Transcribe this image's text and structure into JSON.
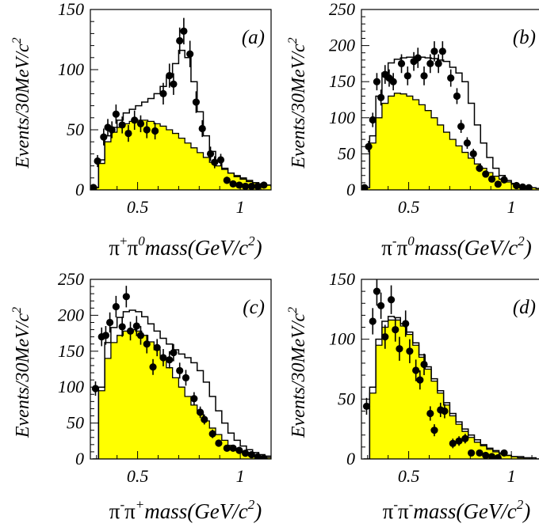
{
  "chart_data": [
    {
      "type": "histogram",
      "panel_label": "(a)",
      "xlabel": {
        "base": "π",
        "sup1": "+",
        "mid": "π",
        "sup2": "0",
        "text": "mass(GeV/c",
        "sup3": "2",
        "close": ")"
      },
      "ylabel": {
        "text": "Events/30MeV/c",
        "sup": "2"
      },
      "xlim": [
        0.27,
        1.15
      ],
      "ylim": [
        0,
        150
      ],
      "xticks": [
        {
          "v": 0.5,
          "label": "0.5"
        },
        {
          "v": 1.0,
          "label": "1"
        }
      ],
      "yticks": [
        {
          "v": 0,
          "label": "0"
        },
        {
          "v": 50,
          "label": "50"
        },
        {
          "v": 100,
          "label": "100"
        },
        {
          "v": 150,
          "label": "150"
        }
      ],
      "bins": {
        "start": 0.28,
        "width": 0.03,
        "filled": [
          2,
          22,
          40,
          48,
          52,
          55,
          57,
          58,
          58,
          57,
          55,
          53,
          50,
          47,
          43,
          39,
          35,
          31,
          27,
          23,
          20,
          17,
          14,
          12,
          10,
          8,
          6,
          5,
          4,
          3
        ],
        "total": [
          2,
          25,
          45,
          52,
          58,
          64,
          67,
          70,
          73,
          76,
          80,
          86,
          94,
          105,
          116,
          110,
          90,
          65,
          45,
          32,
          24,
          18,
          14,
          11,
          9,
          7,
          6,
          5,
          4,
          3
        ]
      },
      "points": [
        {
          "x": 0.285,
          "y": 2,
          "err": 1
        },
        {
          "x": 0.305,
          "y": 24,
          "err": 5
        },
        {
          "x": 0.335,
          "y": 44,
          "err": 7
        },
        {
          "x": 0.355,
          "y": 52,
          "err": 7
        },
        {
          "x": 0.375,
          "y": 50,
          "err": 7
        },
        {
          "x": 0.395,
          "y": 63,
          "err": 8
        },
        {
          "x": 0.425,
          "y": 54,
          "err": 7
        },
        {
          "x": 0.455,
          "y": 47,
          "err": 7
        },
        {
          "x": 0.485,
          "y": 58,
          "err": 8
        },
        {
          "x": 0.515,
          "y": 55,
          "err": 7
        },
        {
          "x": 0.545,
          "y": 50,
          "err": 7
        },
        {
          "x": 0.585,
          "y": 49,
          "err": 7
        },
        {
          "x": 0.625,
          "y": 80,
          "err": 9
        },
        {
          "x": 0.655,
          "y": 95,
          "err": 10
        },
        {
          "x": 0.675,
          "y": 88,
          "err": 9
        },
        {
          "x": 0.705,
          "y": 124,
          "err": 11
        },
        {
          "x": 0.725,
          "y": 132,
          "err": 11
        },
        {
          "x": 0.755,
          "y": 113,
          "err": 11
        },
        {
          "x": 0.785,
          "y": 73,
          "err": 9
        },
        {
          "x": 0.815,
          "y": 51,
          "err": 7
        },
        {
          "x": 0.855,
          "y": 30,
          "err": 6
        },
        {
          "x": 0.875,
          "y": 23,
          "err": 5
        },
        {
          "x": 0.905,
          "y": 25,
          "err": 5
        },
        {
          "x": 0.935,
          "y": 8,
          "err": 3
        },
        {
          "x": 0.965,
          "y": 5,
          "err": 2
        },
        {
          "x": 0.995,
          "y": 4,
          "err": 2
        },
        {
          "x": 1.025,
          "y": 3,
          "err": 2
        },
        {
          "x": 1.055,
          "y": 3,
          "err": 2
        },
        {
          "x": 1.085,
          "y": 3,
          "err": 2
        },
        {
          "x": 1.115,
          "y": 4,
          "err": 2
        }
      ]
    },
    {
      "type": "histogram",
      "panel_label": "(b)",
      "xlabel": {
        "base": "π",
        "sup1": "-",
        "mid": "π",
        "sup2": "0",
        "text": "mass(GeV/c",
        "sup3": "2",
        "close": ")"
      },
      "ylabel": {
        "text": "Events/30MeV/c",
        "sup": "2"
      },
      "xlim": [
        0.27,
        1.15
      ],
      "ylim": [
        0,
        250
      ],
      "xticks": [
        {
          "v": 0.5,
          "label": "0.5"
        },
        {
          "v": 1.0,
          "label": "1"
        }
      ],
      "yticks": [
        {
          "v": 0,
          "label": "0"
        },
        {
          "v": 50,
          "label": "50"
        },
        {
          "v": 100,
          "label": "100"
        },
        {
          "v": 150,
          "label": "150"
        },
        {
          "v": 200,
          "label": "200"
        },
        {
          "v": 250,
          "label": "250"
        }
      ],
      "bins": {
        "start": 0.28,
        "width": 0.03,
        "filled": [
          3,
          65,
          100,
          120,
          130,
          134,
          133,
          130,
          125,
          118,
          110,
          100,
          90,
          80,
          70,
          61,
          52,
          44,
          36,
          30,
          24,
          19,
          15,
          11,
          8,
          6,
          4,
          3,
          2,
          2
        ],
        "total": [
          3,
          75,
          130,
          162,
          176,
          181,
          183,
          184,
          184,
          184,
          183,
          182,
          180,
          178,
          170,
          162,
          150,
          120,
          90,
          65,
          45,
          30,
          20,
          13,
          9,
          6,
          4,
          3,
          2,
          2
        ]
      },
      "points": [
        {
          "x": 0.285,
          "y": 3,
          "err": 2
        },
        {
          "x": 0.305,
          "y": 60,
          "err": 8
        },
        {
          "x": 0.325,
          "y": 97,
          "err": 10
        },
        {
          "x": 0.345,
          "y": 150,
          "err": 12
        },
        {
          "x": 0.365,
          "y": 128,
          "err": 11
        },
        {
          "x": 0.385,
          "y": 160,
          "err": 13
        },
        {
          "x": 0.405,
          "y": 155,
          "err": 12
        },
        {
          "x": 0.425,
          "y": 150,
          "err": 12
        },
        {
          "x": 0.465,
          "y": 175,
          "err": 13
        },
        {
          "x": 0.495,
          "y": 158,
          "err": 13
        },
        {
          "x": 0.525,
          "y": 178,
          "err": 13
        },
        {
          "x": 0.545,
          "y": 183,
          "err": 14
        },
        {
          "x": 0.575,
          "y": 158,
          "err": 13
        },
        {
          "x": 0.605,
          "y": 175,
          "err": 13
        },
        {
          "x": 0.625,
          "y": 192,
          "err": 14
        },
        {
          "x": 0.645,
          "y": 175,
          "err": 13
        },
        {
          "x": 0.665,
          "y": 192,
          "err": 14
        },
        {
          "x": 0.705,
          "y": 155,
          "err": 12
        },
        {
          "x": 0.735,
          "y": 130,
          "err": 11
        },
        {
          "x": 0.755,
          "y": 88,
          "err": 9
        },
        {
          "x": 0.785,
          "y": 65,
          "err": 8
        },
        {
          "x": 0.815,
          "y": 50,
          "err": 7
        },
        {
          "x": 0.845,
          "y": 30,
          "err": 5
        },
        {
          "x": 0.875,
          "y": 22,
          "err": 5
        },
        {
          "x": 0.905,
          "y": 15,
          "err": 4
        },
        {
          "x": 0.935,
          "y": 8,
          "err": 3
        },
        {
          "x": 0.965,
          "y": 14,
          "err": 4
        },
        {
          "x": 1.025,
          "y": 6,
          "err": 2
        },
        {
          "x": 1.055,
          "y": 4,
          "err": 2
        },
        {
          "x": 1.085,
          "y": 3,
          "err": 2
        }
      ]
    },
    {
      "type": "histogram",
      "panel_label": "(c)",
      "xlabel": {
        "base": "π",
        "sup1": "-",
        "mid": "π",
        "sup2": "+",
        "text": "mass(GeV/c",
        "sup3": "2",
        "close": ")"
      },
      "ylabel": {
        "text": "Events/30MeV/c",
        "sup": "2"
      },
      "xlim": [
        0.27,
        1.15
      ],
      "ylim": [
        0,
        250
      ],
      "xticks": [
        {
          "v": 0.5,
          "label": "0.5"
        },
        {
          "v": 1.0,
          "label": "1"
        }
      ],
      "yticks": [
        {
          "v": 0,
          "label": "0"
        },
        {
          "v": 50,
          "label": "50"
        },
        {
          "v": 100,
          "label": "100"
        },
        {
          "v": 150,
          "label": "150"
        },
        {
          "v": 200,
          "label": "200"
        },
        {
          "v": 250,
          "label": "250"
        }
      ],
      "bins": {
        "start": 0.28,
        "width": 0.03,
        "filled": [
          0,
          95,
          140,
          162,
          172,
          178,
          180,
          178,
          172,
          163,
          152,
          140,
          127,
          113,
          100,
          87,
          75,
          64,
          53,
          43,
          34,
          26,
          19,
          14,
          10,
          7,
          5,
          3,
          2,
          1
        ],
        "total": [
          0,
          100,
          162,
          183,
          197,
          205,
          207,
          205,
          198,
          188,
          178,
          168,
          160,
          152,
          146,
          141,
          134,
          123,
          107,
          87,
          67,
          50,
          36,
          26,
          18,
          13,
          9,
          6,
          4,
          2
        ]
      },
      "points": [
        {
          "x": 0.295,
          "y": 98,
          "err": 10
        },
        {
          "x": 0.325,
          "y": 170,
          "err": 13
        },
        {
          "x": 0.345,
          "y": 172,
          "err": 13
        },
        {
          "x": 0.365,
          "y": 190,
          "err": 14
        },
        {
          "x": 0.395,
          "y": 212,
          "err": 15
        },
        {
          "x": 0.425,
          "y": 184,
          "err": 14
        },
        {
          "x": 0.445,
          "y": 226,
          "err": 15
        },
        {
          "x": 0.465,
          "y": 178,
          "err": 13
        },
        {
          "x": 0.495,
          "y": 185,
          "err": 14
        },
        {
          "x": 0.515,
          "y": 172,
          "err": 13
        },
        {
          "x": 0.545,
          "y": 160,
          "err": 13
        },
        {
          "x": 0.575,
          "y": 128,
          "err": 11
        },
        {
          "x": 0.595,
          "y": 155,
          "err": 12
        },
        {
          "x": 0.625,
          "y": 141,
          "err": 12
        },
        {
          "x": 0.655,
          "y": 138,
          "err": 12
        },
        {
          "x": 0.675,
          "y": 148,
          "err": 12
        },
        {
          "x": 0.705,
          "y": 123,
          "err": 11
        },
        {
          "x": 0.735,
          "y": 113,
          "err": 11
        },
        {
          "x": 0.775,
          "y": 84,
          "err": 9
        },
        {
          "x": 0.805,
          "y": 65,
          "err": 8
        },
        {
          "x": 0.825,
          "y": 55,
          "err": 7
        },
        {
          "x": 0.865,
          "y": 35,
          "err": 6
        },
        {
          "x": 0.895,
          "y": 22,
          "err": 5
        },
        {
          "x": 0.935,
          "y": 15,
          "err": 4
        },
        {
          "x": 0.965,
          "y": 15,
          "err": 4
        },
        {
          "x": 0.995,
          "y": 12,
          "err": 3
        },
        {
          "x": 1.025,
          "y": 8,
          "err": 3
        },
        {
          "x": 1.055,
          "y": 6,
          "err": 2
        },
        {
          "x": 1.085,
          "y": 3,
          "err": 2
        },
        {
          "x": 1.115,
          "y": 1,
          "err": 1
        }
      ]
    },
    {
      "type": "histogram",
      "panel_label": "(d)",
      "xlabel": {
        "base": "π",
        "sup1": "-",
        "mid": "π",
        "sup2": "-",
        "text": "mass(GeV/c",
        "sup3": "2",
        "close": ")"
      },
      "ylabel": {
        "text": "Events/30MeV/c",
        "sup": "2"
      },
      "xlim": [
        0.27,
        1.15
      ],
      "ylim": [
        0,
        150
      ],
      "xticks": [
        {
          "v": 0.5,
          "label": "0.5"
        },
        {
          "v": 1.0,
          "label": "1"
        }
      ],
      "yticks": [
        {
          "v": 0,
          "label": "0"
        },
        {
          "v": 50,
          "label": "50"
        },
        {
          "v": 100,
          "label": "100"
        },
        {
          "v": 150,
          "label": "150"
        }
      ],
      "bins": {
        "start": 0.28,
        "width": 0.03,
        "filled": [
          0,
          55,
          95,
          110,
          116,
          116,
          111,
          104,
          95,
          85,
          75,
          65,
          55,
          45,
          36,
          29,
          23,
          18,
          14,
          11,
          8,
          6,
          4,
          3,
          2,
          1,
          1,
          0,
          0,
          0
        ],
        "total": [
          0,
          60,
          100,
          115,
          119,
          118,
          113,
          106,
          97,
          87,
          77,
          67,
          57,
          47,
          38,
          31,
          25,
          20,
          16,
          12,
          9,
          7,
          5,
          3,
          2,
          2,
          1,
          1,
          0,
          0
        ]
      },
      "points": [
        {
          "x": 0.295,
          "y": 44,
          "err": 7
        },
        {
          "x": 0.325,
          "y": 115,
          "err": 11
        },
        {
          "x": 0.345,
          "y": 140,
          "err": 12
        },
        {
          "x": 0.365,
          "y": 128,
          "err": 11
        },
        {
          "x": 0.385,
          "y": 102,
          "err": 10
        },
        {
          "x": 0.415,
          "y": 133,
          "err": 12
        },
        {
          "x": 0.435,
          "y": 108,
          "err": 10
        },
        {
          "x": 0.455,
          "y": 92,
          "err": 10
        },
        {
          "x": 0.485,
          "y": 113,
          "err": 11
        },
        {
          "x": 0.505,
          "y": 90,
          "err": 10
        },
        {
          "x": 0.535,
          "y": 74,
          "err": 9
        },
        {
          "x": 0.555,
          "y": 66,
          "err": 8
        },
        {
          "x": 0.575,
          "y": 79,
          "err": 9
        },
        {
          "x": 0.605,
          "y": 38,
          "err": 6
        },
        {
          "x": 0.625,
          "y": 24,
          "err": 5
        },
        {
          "x": 0.655,
          "y": 41,
          "err": 6
        },
        {
          "x": 0.675,
          "y": 40,
          "err": 6
        },
        {
          "x": 0.715,
          "y": 13,
          "err": 4
        },
        {
          "x": 0.745,
          "y": 15,
          "err": 4
        },
        {
          "x": 0.775,
          "y": 17,
          "err": 4
        },
        {
          "x": 0.805,
          "y": 5,
          "err": 2
        },
        {
          "x": 0.845,
          "y": 5,
          "err": 2
        },
        {
          "x": 0.875,
          "y": 3,
          "err": 2
        },
        {
          "x": 0.905,
          "y": 2,
          "err": 1
        },
        {
          "x": 0.935,
          "y": 1,
          "err": 1
        },
        {
          "x": 0.965,
          "y": 5,
          "err": 2
        }
      ]
    }
  ],
  "colors": {
    "fill": "#ffff00",
    "line": "#000000",
    "marker": "#000000",
    "background": "#ffffff"
  }
}
